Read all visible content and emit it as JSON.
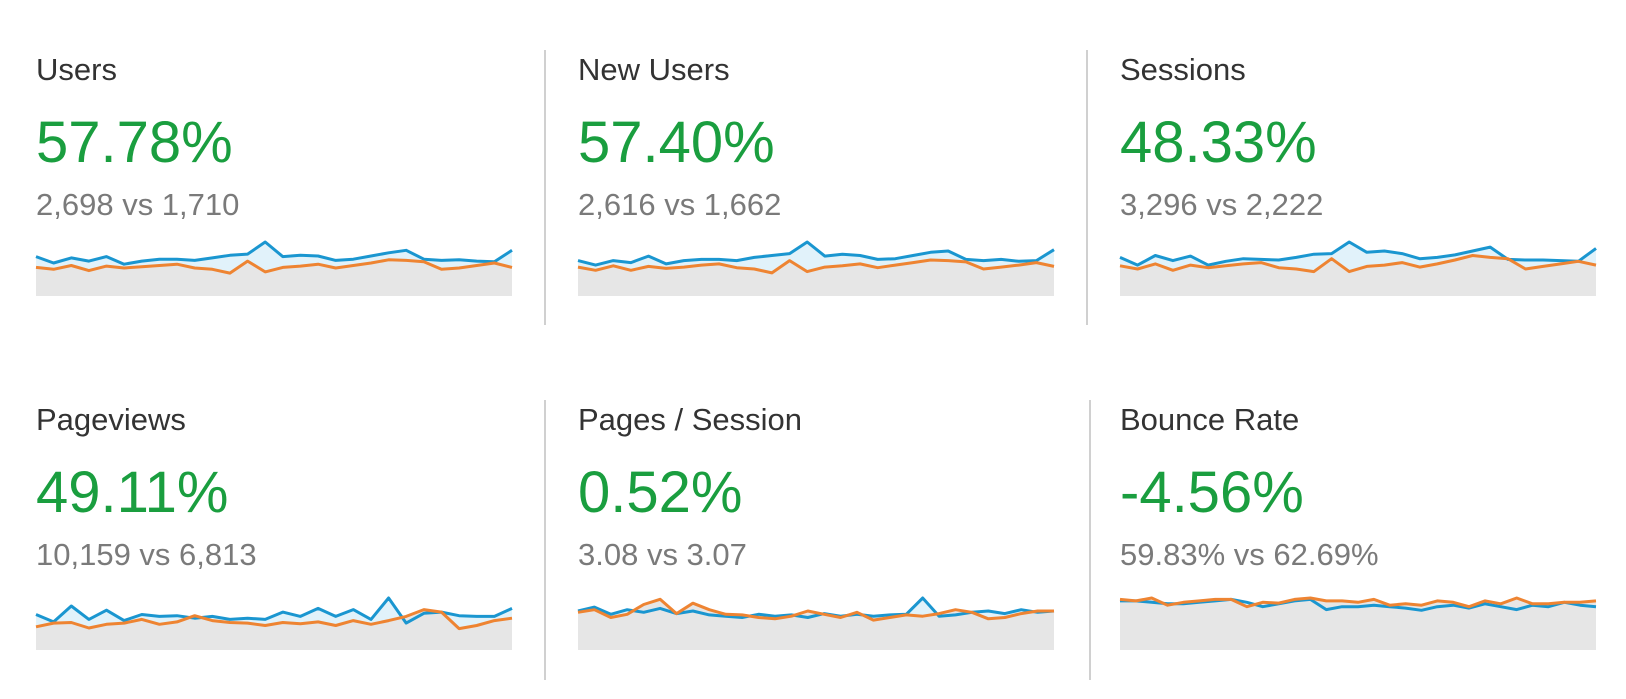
{
  "cards": [
    {
      "title": "Users",
      "value": "57.78%",
      "comparison": "2,698 vs 1,710",
      "sparkline": {
        "current": [
          62,
          52,
          60,
          55,
          62,
          50,
          55,
          58,
          58,
          56,
          60,
          64,
          66,
          85,
          62,
          64,
          63,
          56,
          58,
          63,
          68,
          72,
          58,
          56,
          57,
          55,
          54,
          72
        ],
        "previous": [
          45,
          42,
          48,
          40,
          47,
          44,
          46,
          48,
          50,
          44,
          42,
          36,
          55,
          38,
          45,
          47,
          50,
          44,
          48,
          52,
          57,
          56,
          54,
          42,
          44,
          48,
          52,
          45
        ]
      }
    },
    {
      "title": "New Users",
      "value": "57.40%",
      "comparison": "2,616 vs 1,662",
      "sparkline": {
        "current": [
          55,
          48,
          55,
          52,
          62,
          50,
          55,
          57,
          57,
          55,
          60,
          63,
          66,
          84,
          62,
          65,
          63,
          57,
          58,
          63,
          68,
          70,
          57,
          55,
          57,
          54,
          55,
          72
        ],
        "previous": [
          45,
          40,
          47,
          40,
          46,
          43,
          45,
          48,
          50,
          44,
          42,
          36,
          55,
          38,
          45,
          47,
          50,
          44,
          48,
          52,
          56,
          55,
          53,
          42,
          45,
          48,
          52,
          46
        ]
      }
    },
    {
      "title": "Sessions",
      "value": "48.33%",
      "comparison": "3,296 vs 2,222",
      "sparkline": {
        "current": [
          60,
          48,
          63,
          55,
          62,
          48,
          54,
          58,
          57,
          56,
          60,
          65,
          66,
          84,
          68,
          70,
          66,
          58,
          60,
          64,
          70,
          76,
          57,
          56,
          56,
          55,
          54,
          74
        ],
        "previous": [
          47,
          42,
          50,
          40,
          48,
          44,
          47,
          50,
          52,
          44,
          42,
          38,
          58,
          38,
          46,
          48,
          52,
          45,
          50,
          56,
          63,
          60,
          58,
          42,
          46,
          50,
          54,
          48
        ]
      }
    },
    {
      "title": "Pageviews",
      "value": "49.11%",
      "comparison": "10,159 vs 6,813",
      "sparkline": {
        "current": [
          58,
          46,
          72,
          50,
          65,
          48,
          58,
          55,
          56,
          52,
          55,
          50,
          52,
          50,
          62,
          55,
          68,
          55,
          66,
          50,
          85,
          44,
          60,
          62,
          56,
          55,
          55,
          68
        ],
        "previous": [
          38,
          44,
          45,
          36,
          42,
          44,
          50,
          42,
          46,
          56,
          48,
          45,
          44,
          40,
          45,
          43,
          46,
          40,
          48,
          42,
          48,
          55,
          66,
          62,
          35,
          40,
          48,
          52
        ]
      }
    },
    {
      "title": "Pages / Session",
      "value": "0.52%",
      "comparison": "3.08 vs 3.07",
      "sparkline": {
        "current": [
          60,
          66,
          55,
          62,
          58,
          64,
          56,
          60,
          54,
          52,
          50,
          55,
          52,
          54,
          50,
          56,
          52,
          55,
          52,
          54,
          55,
          80,
          52,
          54,
          58,
          60,
          56,
          62,
          58,
          60
        ],
        "previous": [
          58,
          62,
          50,
          55,
          70,
          78,
          56,
          72,
          62,
          55,
          54,
          50,
          48,
          52,
          60,
          55,
          50,
          58,
          46,
          50,
          54,
          52,
          56,
          62,
          58,
          48,
          50,
          56,
          60,
          60
        ]
      }
    },
    {
      "title": "Bounce Rate",
      "value": "-4.56%",
      "comparison": "59.83% vs 62.69%",
      "sparkline": {
        "current": [
          68,
          68,
          66,
          64,
          64,
          66,
          68,
          70,
          66,
          60,
          64,
          68,
          70,
          56,
          60,
          60,
          62,
          60,
          58,
          55,
          60,
          62,
          58,
          64,
          60,
          56,
          62,
          60,
          66,
          62,
          60
        ],
        "previous": [
          70,
          68,
          72,
          62,
          66,
          68,
          70,
          70,
          60,
          66,
          65,
          70,
          72,
          68,
          68,
          66,
          70,
          62,
          64,
          62,
          68,
          66,
          60,
          68,
          64,
          72,
          64,
          64,
          66,
          66,
          68
        ]
      }
    }
  ]
}
